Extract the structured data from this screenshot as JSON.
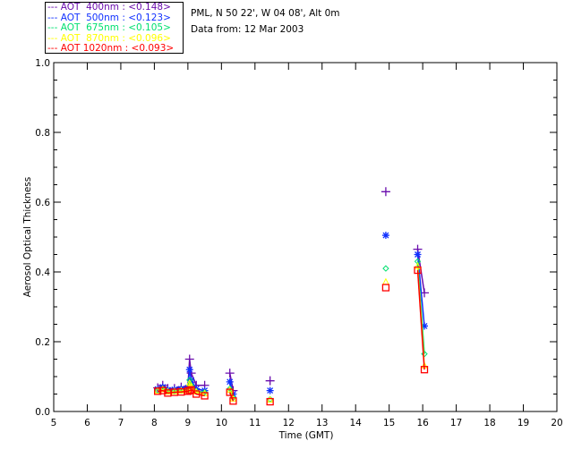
{
  "header": {
    "site": "PML, N 50 22', W 04 08', Alt 0m",
    "date": "Data from: 12 Mar 2003"
  },
  "chart_data": {
    "type": "scatter",
    "xlabel": "Time (GMT)",
    "ylabel": "Aerosol Optical Thickness",
    "xlim": [
      5,
      20
    ],
    "ylim": [
      0,
      1.0
    ],
    "xticks": [
      "5",
      "6",
      "7",
      "8",
      "9",
      "10",
      "11",
      "12",
      "13",
      "14",
      "15",
      "16",
      "17",
      "18",
      "19",
      "20"
    ],
    "yticks": [
      "0.0",
      "0.2",
      "0.4",
      "0.6",
      "0.8",
      "1.0"
    ],
    "legend_placement": "top-left outside",
    "x": [
      8.1,
      8.25,
      8.4,
      8.6,
      8.8,
      9.0,
      9.05,
      9.1,
      9.25,
      9.5,
      10.25,
      10.35,
      11.45,
      14.9,
      15.85,
      16.05
    ],
    "series": [
      {
        "name": "AOT  400nm : <0.148>",
        "color": "#6a0dad",
        "marker": "plus",
        "values": [
          0.068,
          0.075,
          0.066,
          0.066,
          0.07,
          0.072,
          0.15,
          0.11,
          0.075,
          0.075,
          0.11,
          0.06,
          0.088,
          0.63,
          0.465,
          0.34
        ]
      },
      {
        "name": "AOT  500nm : <0.123>",
        "color": "#1030ff",
        "marker": "star",
        "values": [
          0.064,
          0.07,
          0.062,
          0.063,
          0.065,
          0.068,
          0.12,
          0.09,
          0.065,
          0.06,
          0.085,
          0.05,
          0.06,
          0.505,
          0.45,
          0.245
        ]
      },
      {
        "name": "AOT  675nm : <0.105>",
        "color": "#00e070",
        "marker": "diamond",
        "values": [
          0.06,
          0.065,
          0.058,
          0.058,
          0.06,
          0.062,
          0.09,
          0.075,
          0.058,
          0.055,
          0.065,
          0.04,
          0.035,
          0.41,
          0.43,
          0.165
        ]
      },
      {
        "name": "AOT  870nm : <0.096>",
        "color": "#ffff00",
        "marker": "triangle",
        "values": [
          0.058,
          0.062,
          0.055,
          0.056,
          0.058,
          0.06,
          0.08,
          0.068,
          0.055,
          0.05,
          0.06,
          0.035,
          0.032,
          0.37,
          0.415,
          0.13
        ]
      },
      {
        "name": "AOT 1020nm : <0.093>",
        "color": "#ff0000",
        "marker": "square",
        "values": [
          0.058,
          0.06,
          0.053,
          0.055,
          0.056,
          0.058,
          0.06,
          0.062,
          0.05,
          0.045,
          0.055,
          0.03,
          0.028,
          0.355,
          0.405,
          0.12
        ]
      }
    ]
  }
}
